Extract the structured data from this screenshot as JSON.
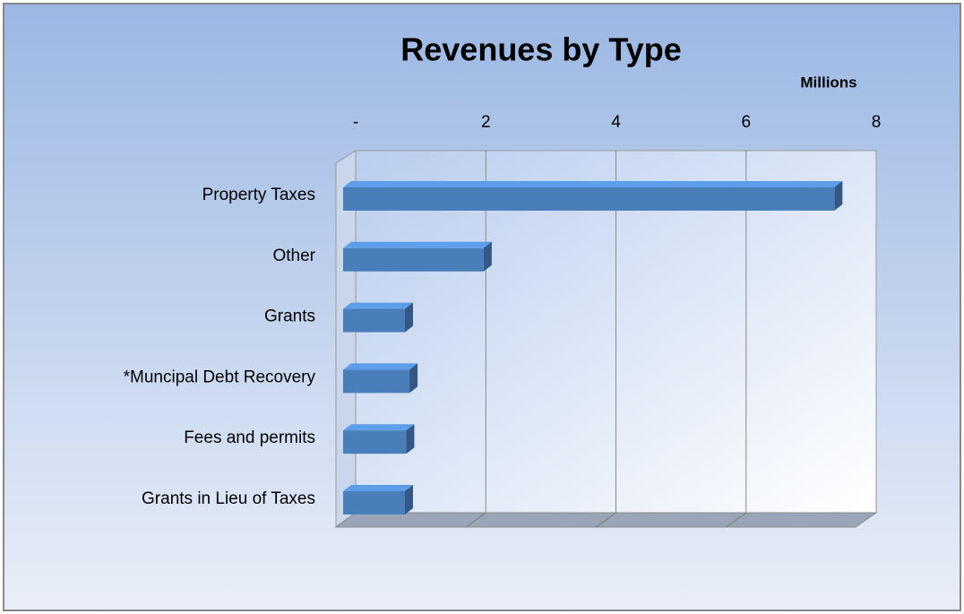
{
  "chart_data": {
    "type": "bar3d_horizontal",
    "title": "Revenues by Type",
    "x_axis_label": "Millions",
    "categories": [
      "Property Taxes",
      "Other",
      "Grants",
      "*Muncipal Debt Recovery",
      "Fees and permits",
      "Grants in Lieu of Taxes"
    ],
    "values": [
      7.55,
      2.16,
      0.95,
      1.02,
      0.97,
      0.95
    ],
    "color": "#4a7ebb",
    "xlim": [
      0,
      8
    ],
    "xticks": [
      {
        "value": 0,
        "label": "-"
      },
      2,
      4,
      6,
      8
    ],
    "grid": true
  }
}
